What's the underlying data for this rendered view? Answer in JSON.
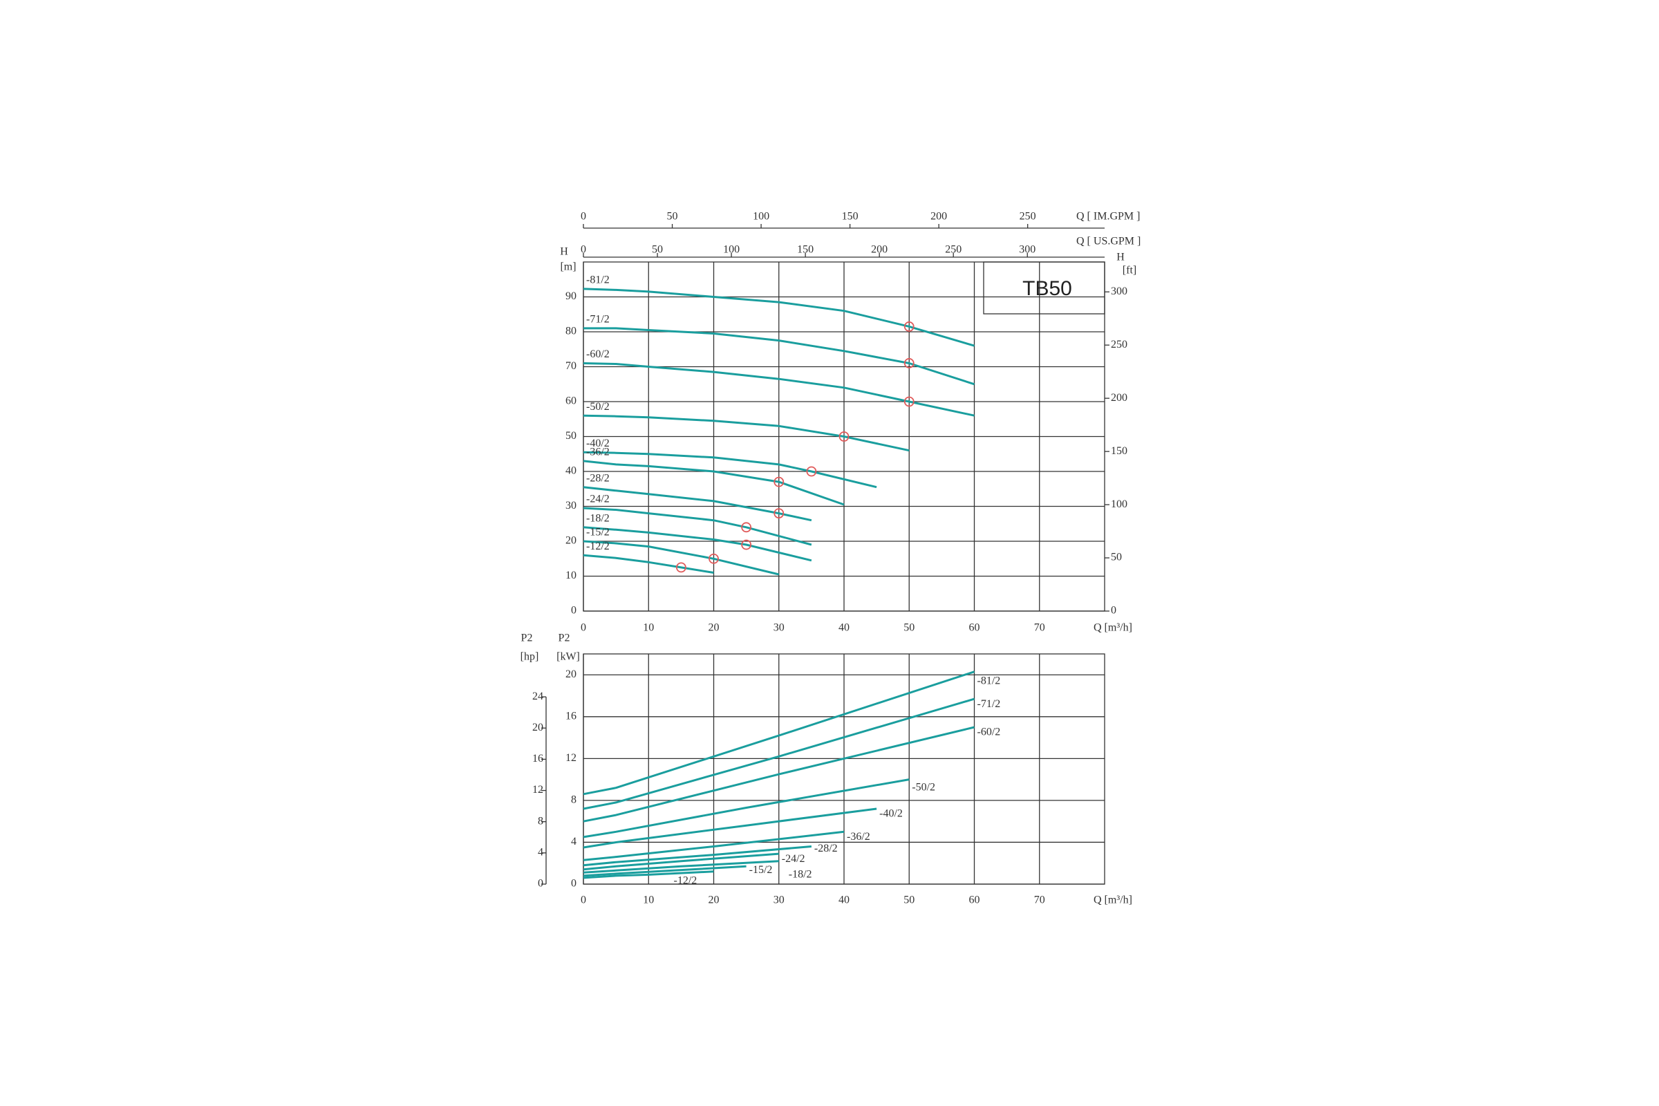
{
  "chart_data": [
    {
      "type": "line",
      "title": "TB50",
      "x_label": "Q [m³/h]",
      "xlim": [
        0,
        80
      ],
      "xticks": [
        0,
        10,
        20,
        30,
        40,
        50,
        60,
        70
      ],
      "y_label": "H",
      "y_unit": "[m]",
      "ylim": [
        0,
        100
      ],
      "yticks": [
        0,
        10,
        20,
        30,
        40,
        50,
        60,
        70,
        80,
        90
      ],
      "y2_label": "H",
      "y2_unit": "[ft]",
      "y2lim": [
        0,
        328.1
      ],
      "y2ticks": [
        0,
        50,
        100,
        150,
        200,
        250,
        300
      ],
      "top_axes": [
        {
          "label": "Q [ IM.GPM ]",
          "xlim": [
            0,
            293.3
          ],
          "xticks": [
            0,
            50,
            100,
            150,
            200,
            250
          ]
        },
        {
          "label": "Q [ US.GPM ]",
          "xlim": [
            0,
            352.2
          ],
          "xticks": [
            0,
            50,
            100,
            150,
            200,
            250,
            300
          ]
        }
      ],
      "grid": true,
      "duty_color": "#e05a5a",
      "series": [
        {
          "name": "-81/2",
          "color": "#1a9e9e",
          "x": [
            0,
            5,
            10,
            20,
            30,
            40,
            50,
            60
          ],
          "values": [
            92.3,
            92,
            91.5,
            90,
            88.5,
            86,
            81.5,
            76
          ],
          "duty_q": 50,
          "duty_h": 81.5
        },
        {
          "name": "-71/2",
          "color": "#1a9e9e",
          "x": [
            0,
            5,
            10,
            20,
            30,
            40,
            50,
            60
          ],
          "values": [
            81,
            81,
            80.5,
            79.5,
            77.5,
            74.5,
            71,
            65
          ],
          "duty_q": 50,
          "duty_h": 71
        },
        {
          "name": "-60/2",
          "color": "#1a9e9e",
          "x": [
            0,
            5,
            10,
            20,
            30,
            40,
            50,
            60
          ],
          "values": [
            71,
            70.8,
            70,
            68.5,
            66.5,
            64,
            60,
            56
          ],
          "duty_q": 50,
          "duty_h": 60
        },
        {
          "name": "-50/2",
          "color": "#1a9e9e",
          "x": [
            0,
            5,
            10,
            20,
            30,
            40,
            50
          ],
          "values": [
            56,
            55.8,
            55.5,
            54.5,
            53,
            50,
            46
          ],
          "duty_q": 40,
          "duty_h": 50
        },
        {
          "name": "-40/2",
          "color": "#1a9e9e",
          "x": [
            0,
            5,
            10,
            20,
            30,
            35,
            45
          ],
          "values": [
            45.5,
            45.3,
            45,
            44,
            42,
            40,
            35.5
          ],
          "duty_q": 35,
          "duty_h": 40
        },
        {
          "name": "-36/2",
          "color": "#1a9e9e",
          "x": [
            0,
            5,
            10,
            20,
            30,
            40
          ],
          "values": [
            43,
            42,
            41.5,
            40,
            37,
            30.5
          ],
          "duty_q": 30,
          "duty_h": 37
        },
        {
          "name": "-28/2",
          "color": "#1a9e9e",
          "x": [
            0,
            5,
            10,
            20,
            30,
            35
          ],
          "values": [
            35.5,
            34.5,
            33.5,
            31.5,
            28,
            26
          ],
          "duty_q": 30,
          "duty_h": 28
        },
        {
          "name": "-24/2",
          "color": "#1a9e9e",
          "x": [
            0,
            5,
            10,
            20,
            25,
            35
          ],
          "values": [
            29.5,
            29,
            28,
            26,
            24,
            19
          ],
          "duty_q": 25,
          "duty_h": 24
        },
        {
          "name": "-18/2",
          "color": "#1a9e9e",
          "x": [
            0,
            5,
            10,
            20,
            25,
            35
          ],
          "values": [
            24,
            23.3,
            22.5,
            20.5,
            19,
            14.5
          ],
          "duty_q": 25,
          "duty_h": 19
        },
        {
          "name": "-15/2",
          "color": "#1a9e9e",
          "x": [
            0,
            5,
            10,
            20,
            30
          ],
          "values": [
            20,
            19.4,
            18.5,
            15,
            10.5
          ],
          "duty_q": 20,
          "duty_h": 15
        },
        {
          "name": "-12/2",
          "color": "#1a9e9e",
          "x": [
            0,
            5,
            10,
            15,
            20
          ],
          "values": [
            16,
            15.2,
            14,
            12.5,
            11
          ],
          "duty_q": 15,
          "duty_h": 12.5
        }
      ]
    },
    {
      "type": "line",
      "x_label": "Q [m³/h]",
      "xlim": [
        0,
        80
      ],
      "xticks": [
        0,
        10,
        20,
        30,
        40,
        50,
        60,
        70
      ],
      "y_label": "P2",
      "y_unit": "[kW]",
      "ylim": [
        0,
        22
      ],
      "yticks": [
        0,
        4,
        8,
        12,
        16,
        20
      ],
      "y2_label": "P2",
      "y2_unit": "[hp]",
      "y2lim": [
        0,
        29.5
      ],
      "y2ticks": [
        0,
        4,
        8,
        12,
        16,
        20,
        24
      ],
      "grid": true,
      "series": [
        {
          "name": "-81/2",
          "color": "#1a9e9e",
          "x": [
            0,
            5,
            30,
            60
          ],
          "values": [
            8.6,
            9.2,
            14.2,
            20.3
          ]
        },
        {
          "name": "-71/2",
          "color": "#1a9e9e",
          "x": [
            0,
            5,
            30,
            60
          ],
          "values": [
            7.2,
            7.8,
            12.2,
            17.7
          ]
        },
        {
          "name": "-60/2",
          "color": "#1a9e9e",
          "x": [
            0,
            5,
            30,
            60
          ],
          "values": [
            6,
            6.6,
            10.5,
            15
          ]
        },
        {
          "name": "-50/2",
          "color": "#1a9e9e",
          "x": [
            0,
            5,
            25,
            50
          ],
          "values": [
            4.5,
            5,
            7.3,
            10
          ]
        },
        {
          "name": "-40/2",
          "color": "#1a9e9e",
          "x": [
            0,
            5,
            25,
            45
          ],
          "values": [
            3.5,
            4,
            5.6,
            7.2
          ]
        },
        {
          "name": "-36/2",
          "color": "#1a9e9e",
          "x": [
            0,
            5,
            20,
            40
          ],
          "values": [
            2.3,
            2.6,
            3.6,
            5
          ]
        },
        {
          "name": "-28/2",
          "color": "#1a9e9e",
          "x": [
            0,
            5,
            20,
            35
          ],
          "values": [
            1.8,
            2.1,
            2.8,
            3.6
          ]
        },
        {
          "name": "-24/2",
          "color": "#1a9e9e",
          "x": [
            0,
            5,
            15,
            30
          ],
          "values": [
            1.4,
            1.7,
            2.2,
            2.9
          ]
        },
        {
          "name": "-18/2",
          "color": "#1a9e9e",
          "x": [
            0,
            5,
            15,
            30
          ],
          "values": [
            1.1,
            1.3,
            1.7,
            2.2
          ]
        },
        {
          "name": "-15/2",
          "color": "#1a9e9e",
          "x": [
            0,
            5,
            15,
            25
          ],
          "values": [
            0.8,
            1,
            1.35,
            1.7
          ]
        },
        {
          "name": "-12/2",
          "color": "#1a9e9e",
          "x": [
            0,
            5,
            10,
            20
          ],
          "values": [
            0.6,
            0.8,
            0.9,
            1.2
          ]
        }
      ]
    }
  ]
}
